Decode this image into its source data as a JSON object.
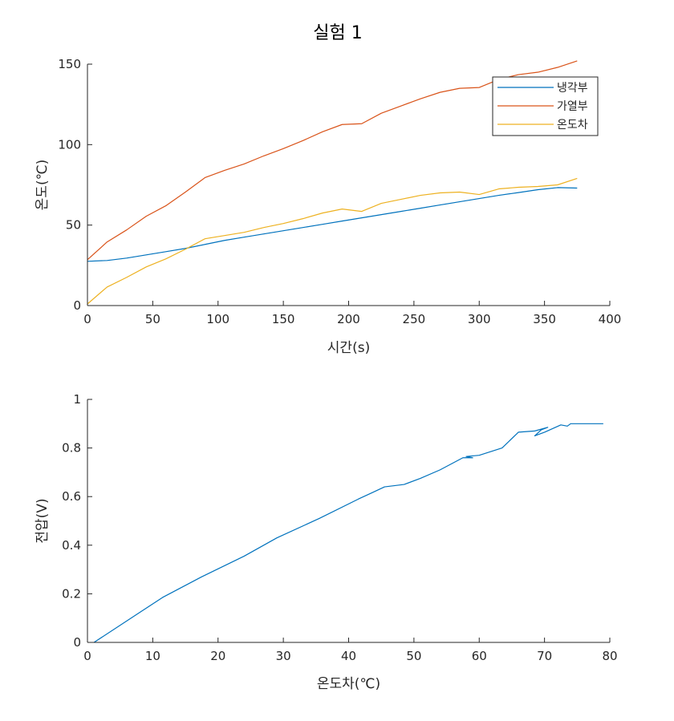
{
  "figure_title": "실험 1",
  "colors": {
    "axis": "#262626",
    "series1": "#0072BD",
    "series2": "#D95319",
    "series3": "#EDB120"
  },
  "chart_data": [
    {
      "type": "line",
      "title": "실험 1",
      "xlabel": "시간(s)",
      "ylabel": "온도(℃)",
      "xlim": [
        0,
        400
      ],
      "ylim": [
        0,
        150
      ],
      "xticks": [
        "0",
        "50",
        "100",
        "150",
        "200",
        "250",
        "300",
        "350",
        "400"
      ],
      "yticks": [
        "0",
        "50",
        "100",
        "150"
      ],
      "grid": false,
      "legend": "top-right",
      "series": [
        {
          "name": "냉각부",
          "color": "#0072BD",
          "x": [
            0,
            15,
            30,
            45,
            60,
            75,
            90,
            105,
            120,
            135,
            150,
            165,
            180,
            195,
            210,
            225,
            240,
            255,
            270,
            285,
            300,
            315,
            330,
            345,
            360,
            375
          ],
          "y": [
            27.5,
            28,
            29.5,
            31.5,
            33.5,
            35.5,
            38,
            40.5,
            42.5,
            44.5,
            46.5,
            48.5,
            50.5,
            52.5,
            54.5,
            56.5,
            58.5,
            60.5,
            62.5,
            64.5,
            66.5,
            68.5,
            70.2,
            72,
            73.3,
            73
          ]
        },
        {
          "name": "가열부",
          "color": "#D95319",
          "x": [
            0,
            15,
            30,
            45,
            60,
            75,
            90,
            105,
            120,
            135,
            150,
            165,
            180,
            195,
            210,
            225,
            240,
            255,
            270,
            285,
            300,
            315,
            330,
            345,
            360,
            375
          ],
          "y": [
            28.5,
            39.5,
            47,
            55.5,
            62,
            70.5,
            79.5,
            84,
            88,
            93,
            97.5,
            102.5,
            108,
            112.5,
            113,
            119.5,
            124,
            128.5,
            132.5,
            135,
            135.5,
            140.5,
            143.5,
            145,
            148,
            152
          ]
        },
        {
          "name": "온도차",
          "color": "#EDB120",
          "x": [
            0,
            15,
            30,
            45,
            60,
            75,
            90,
            105,
            120,
            135,
            150,
            165,
            180,
            195,
            210,
            225,
            240,
            255,
            270,
            285,
            300,
            315,
            330,
            345,
            360,
            375
          ],
          "y": [
            1,
            11.5,
            17.5,
            24,
            29,
            35,
            41.5,
            43.5,
            45.5,
            48.5,
            51,
            54,
            57.5,
            60,
            58.5,
            63.5,
            66,
            68.5,
            70,
            70.5,
            69,
            72.5,
            73.5,
            74,
            75,
            79
          ]
        }
      ]
    },
    {
      "type": "line",
      "xlabel": "온도차(℃)",
      "ylabel": "전압(V)",
      "xlim": [
        0,
        80
      ],
      "ylim": [
        0,
        1
      ],
      "xticks": [
        "0",
        "10",
        "20",
        "30",
        "40",
        "50",
        "60",
        "70",
        "80"
      ],
      "yticks": [
        "0",
        "0.2",
        "0.4",
        "0.6",
        "0.8",
        "1"
      ],
      "grid": false,
      "series": [
        {
          "color": "#0072BD",
          "x": [
            1,
            11.5,
            17.5,
            24,
            29,
            35.5,
            41.5,
            43.5,
            45.5,
            48.5,
            51,
            54,
            57.5,
            59,
            58,
            60,
            63.5,
            66,
            68.5,
            70.5,
            69.5,
            68.5,
            70,
            72.5,
            73.5,
            74,
            75,
            79
          ],
          "y": [
            0,
            0.185,
            0.27,
            0.355,
            0.43,
            0.51,
            0.59,
            0.615,
            0.64,
            0.65,
            0.675,
            0.71,
            0.76,
            0.76,
            0.765,
            0.77,
            0.8,
            0.865,
            0.87,
            0.885,
            0.875,
            0.85,
            0.865,
            0.895,
            0.89,
            0.9,
            0.9,
            0.9
          ]
        }
      ]
    }
  ]
}
